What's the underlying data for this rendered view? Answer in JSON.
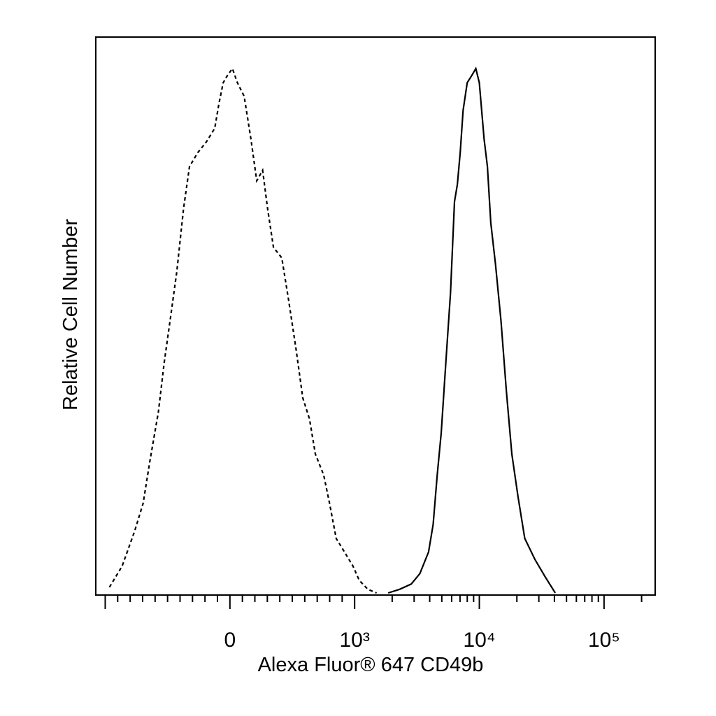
{
  "chart_data": {
    "type": "line",
    "x_label": "Alexa Fluor® 647 CD49b",
    "y_label": "Relative Cell Number",
    "xlim": [
      -1190,
      257000
    ],
    "ylim": [
      0,
      106
    ],
    "xscale": "biexponential",
    "xticks": [
      {
        "value": -1000,
        "label": null
      },
      0,
      {
        "value": 1000,
        "label": "10³"
      },
      {
        "value": 10000,
        "label": "10⁴"
      },
      {
        "value": 100000,
        "label": "10⁵"
      }
    ],
    "xminorticks": [
      -900,
      -800,
      -700,
      -600,
      -500,
      -400,
      -300,
      -200,
      -100,
      100,
      200,
      300,
      400,
      500,
      600,
      700,
      800,
      900,
      2000,
      3000,
      4000,
      5000,
      6000,
      7000,
      8000,
      9000,
      20000,
      30000,
      40000,
      50000,
      60000,
      70000,
      80000,
      90000,
      200000
    ],
    "series": [
      {
        "color": "#000000",
        "line_style": "dashed",
        "x": [
          -966,
          -865,
          -764,
          -696,
          -642,
          -574,
          -527,
          -480,
          -426,
          -372,
          -324,
          -257,
          -189,
          -122,
          -88,
          -54,
          -20,
          20,
          60,
          114,
          168,
          215,
          262,
          302,
          349,
          416,
          470,
          530,
          584,
          638,
          685,
          752,
          799,
          852,
          919,
          987,
          1089,
          1277,
          1500
        ],
        "values": [
          1.1,
          5.1,
          11.8,
          17.1,
          25.1,
          34.5,
          43.9,
          51.9,
          61.2,
          73.3,
          81.3,
          84.0,
          86.0,
          88.6,
          93.3,
          97.3,
          98.7,
          100,
          97.3,
          94.7,
          86.6,
          78.6,
          80.6,
          73.3,
          65.9,
          63.9,
          55.9,
          46.5,
          37.2,
          33.2,
          26.5,
          22.5,
          17.1,
          10.4,
          7.8,
          5.1,
          2.4,
          0.7,
          0
        ]
      },
      {
        "color": "#000000",
        "line_style": "solid",
        "x": [
          1858,
          2297,
          2844,
          3336,
          3917,
          4266,
          4592,
          4943,
          5383,
          5869,
          6324,
          6668,
          7031,
          7413,
          7993,
          8710,
          9376,
          10000,
          10913,
          11614,
          12360,
          13490,
          14920,
          16480,
          18230,
          20400,
          23130,
          27910,
          33670,
          40610
        ],
        "values": [
          0,
          0.7,
          1.7,
          3.7,
          7.8,
          13.1,
          22.5,
          30.5,
          43.9,
          57.2,
          74.6,
          77.9,
          84.0,
          92.0,
          97.3,
          98.7,
          100,
          97.3,
          86.6,
          81.3,
          70.6,
          62.6,
          51.9,
          38.5,
          26.5,
          18.4,
          10.4,
          6.4,
          3.1,
          0
        ]
      }
    ]
  }
}
